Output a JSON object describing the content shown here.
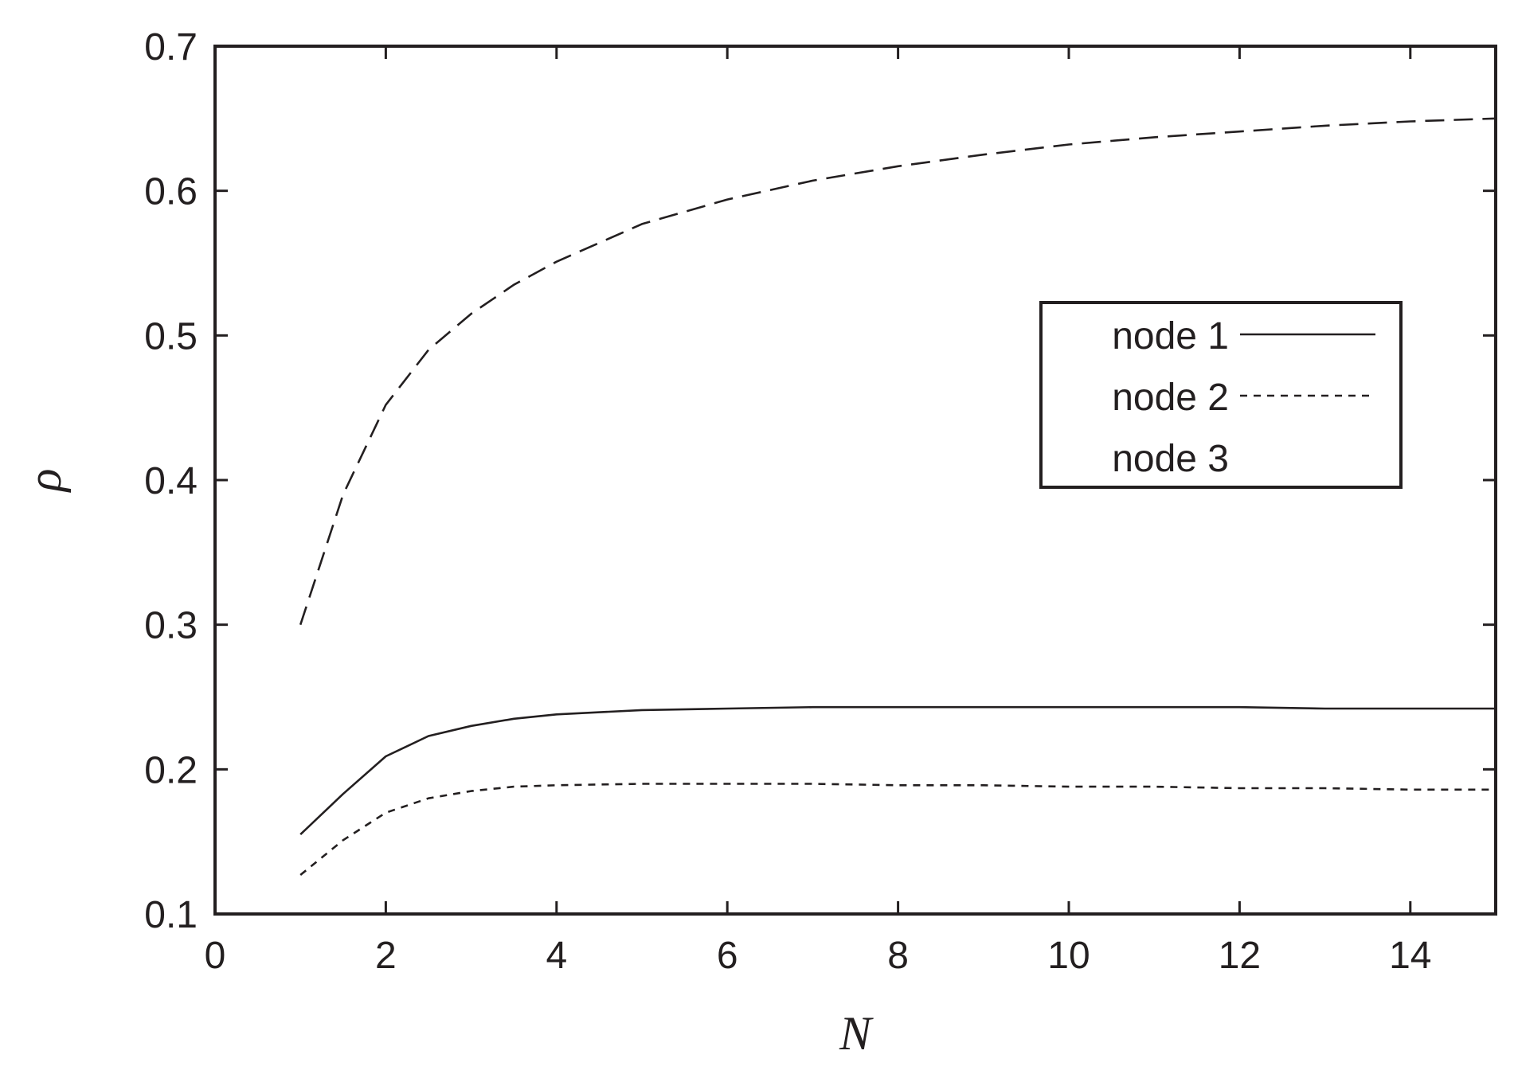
{
  "chart_data": {
    "type": "line",
    "title": "",
    "xlabel": "N",
    "ylabel": "ρ",
    "xlim": [
      0,
      15
    ],
    "ylim": [
      0.1,
      0.7
    ],
    "xticks": [
      0,
      2,
      4,
      6,
      8,
      10,
      12,
      14
    ],
    "yticks": [
      0.1,
      0.2,
      0.3,
      0.4,
      0.5,
      0.6,
      0.7
    ],
    "grid": false,
    "legend_position": "right",
    "series": [
      {
        "name": "node 1",
        "style": "solid",
        "x": [
          1,
          1.5,
          2,
          2.5,
          3,
          3.5,
          4,
          5,
          6,
          7,
          8,
          9,
          10,
          11,
          12,
          13,
          14,
          15
        ],
        "y": [
          0.155,
          0.183,
          0.209,
          0.223,
          0.23,
          0.235,
          0.238,
          0.241,
          0.242,
          0.243,
          0.243,
          0.243,
          0.243,
          0.243,
          0.243,
          0.242,
          0.242,
          0.242
        ]
      },
      {
        "name": "node 2",
        "style": "dotted",
        "x": [
          1,
          1.5,
          2,
          2.5,
          3,
          3.5,
          4,
          5,
          6,
          7,
          8,
          9,
          10,
          11,
          12,
          13,
          14,
          15
        ],
        "y": [
          0.127,
          0.151,
          0.17,
          0.18,
          0.185,
          0.188,
          0.189,
          0.19,
          0.19,
          0.19,
          0.189,
          0.189,
          0.188,
          0.188,
          0.187,
          0.187,
          0.186,
          0.186
        ]
      },
      {
        "name": "node 3",
        "style": "dashed",
        "x": [
          1,
          1.5,
          2,
          2.5,
          3,
          3.5,
          4,
          5,
          6,
          7,
          8,
          9,
          10,
          11,
          12,
          13,
          14,
          15
        ],
        "y": [
          0.3,
          0.39,
          0.452,
          0.49,
          0.515,
          0.535,
          0.551,
          0.577,
          0.594,
          0.607,
          0.617,
          0.625,
          0.632,
          0.637,
          0.641,
          0.645,
          0.648,
          0.65
        ]
      }
    ]
  }
}
